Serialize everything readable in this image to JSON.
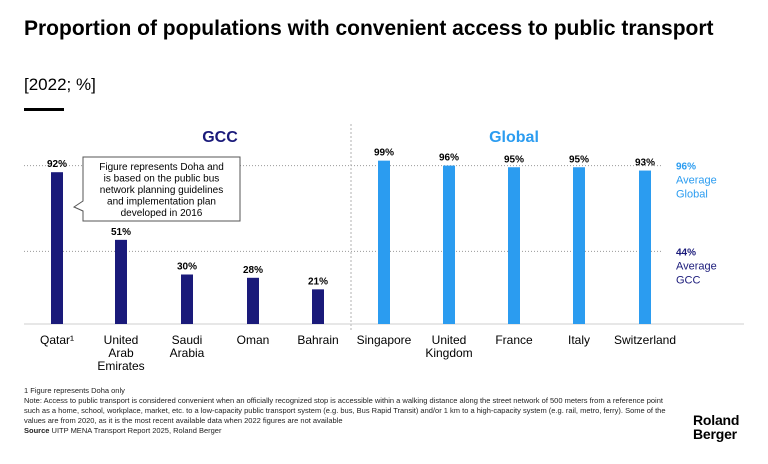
{
  "header": {
    "title": "Proportion of populations with convenient access to public transport",
    "subtitle": "[2022; %]"
  },
  "chart_data": {
    "type": "bar",
    "groups": [
      {
        "name": "GCC",
        "color": "#1a1a7a",
        "categories": [
          "Qatar¹",
          "United Arab Emirates",
          "Saudi Arabia",
          "Oman",
          "Bahrain"
        ],
        "values": [
          92,
          51,
          30,
          28,
          21
        ],
        "labels": [
          "92%",
          "51%",
          "30%",
          "28%",
          "21%"
        ]
      },
      {
        "name": "Global",
        "color": "#2b9cf0",
        "categories": [
          "Singapore",
          "United Kingdom",
          "France",
          "Italy",
          "Switzerland"
        ],
        "values": [
          99,
          96,
          95,
          95,
          93
        ],
        "labels": [
          "99%",
          "96%",
          "95%",
          "95%",
          "93%"
        ]
      }
    ],
    "reference_lines": [
      {
        "value": 96,
        "label_value": "96%",
        "label_text": [
          "Average",
          "Global"
        ],
        "color": "#2b9cf0"
      },
      {
        "value": 44,
        "label_value": "44%",
        "label_text": [
          "Average",
          "GCC"
        ],
        "color": "#1a1a7a"
      }
    ],
    "ylim": [
      0,
      100
    ],
    "annotation": "Figure represents Doha and is based on the public bus network planning guidelines and implementation plan developed in 2016"
  },
  "footnotes": {
    "note1": "1 Figure represents Doha only",
    "note2": "Note: Access to public transport is considered convenient when an officially recognized stop is accessible within a walking distance along the street network of 500 meters from a reference point such as a home, school, workplace, market, etc. to a low-capacity public transport system (e.g. bus, Bus Rapid Transit) and/or 1 km to a high-capacity system (e.g. rail, metro, ferry). Some of the values are from 2020, as it is the most recent available data when 2022 figures are not available",
    "source_label": "Source",
    "source_text": "UITP MENA Transport Report 2025, Roland Berger"
  },
  "logo": {
    "line1": "Roland",
    "line2": "Berger"
  }
}
